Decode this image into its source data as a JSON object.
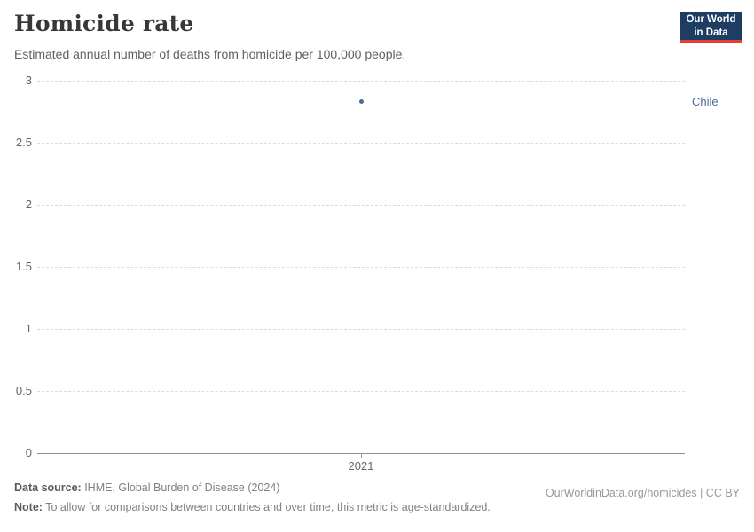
{
  "header": {
    "title": "Homicide rate",
    "subtitle": "Estimated annual number of deaths from homicide per 100,000 people."
  },
  "logo": {
    "line1": "Our World",
    "line2": "in Data"
  },
  "chart_data": {
    "type": "scatter",
    "title": "Homicide rate",
    "subtitle": "Estimated annual number of deaths from homicide per 100,000 people.",
    "series": [
      {
        "name": "Chile",
        "x": [
          2021
        ],
        "values": [
          2.83
        ],
        "color": "#4c6a9c"
      }
    ],
    "xlabel": "",
    "ylabel": "",
    "ylim": [
      0,
      3
    ],
    "yticks": [
      0,
      0.5,
      1,
      1.5,
      2,
      2.5,
      3
    ],
    "xticks": [
      2021
    ],
    "grid": "horizontal-dashed",
    "legend_position": "right-of-point"
  },
  "footer": {
    "data_source_label": "Data source:",
    "data_source_text": " IHME, Global Burden of Disease (2024)",
    "rights": "OurWorldinData.org/homicides | CC BY",
    "note_label": "Note:",
    "note_text": " To allow for comparisons between countries and over time, this metric is age-standardized."
  },
  "colors": {
    "accent": "#4c6a9c",
    "logo_background": "#1d3d63",
    "logo_stripe": "#e63e36",
    "gridline": "#dcdcdc",
    "axis": "#8f8f8f"
  }
}
